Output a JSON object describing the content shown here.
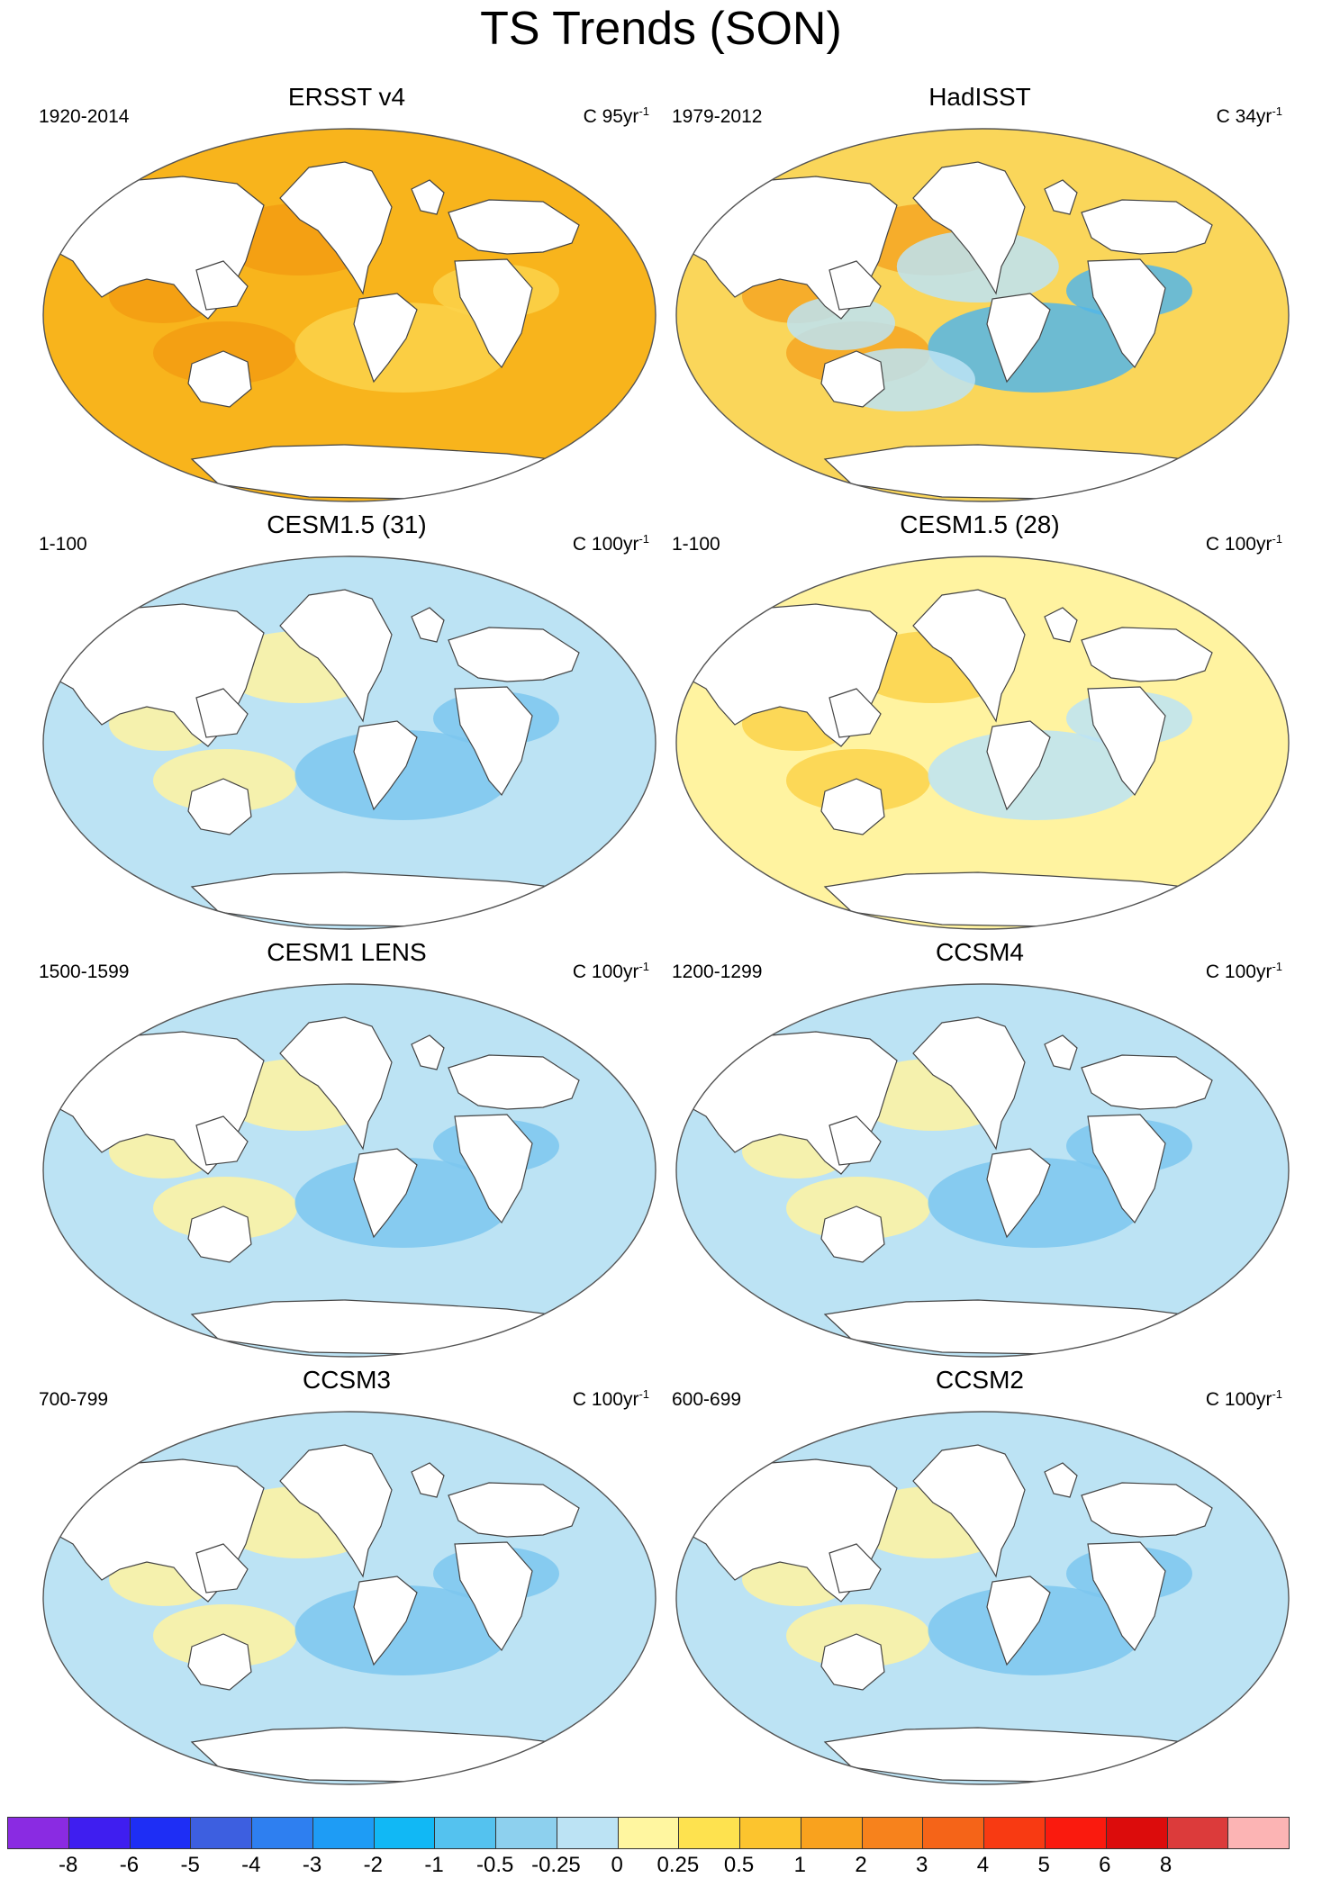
{
  "title": "TS Trends (SON)",
  "panels": [
    {
      "title": "ERSST v4",
      "period": "1920-2014",
      "units": "C 95yr",
      "sup": "-1",
      "ocean": "#F8B41C",
      "patches": [
        {
          "c": "#F39C12"
        },
        {
          "c": "#FBD24A"
        }
      ]
    },
    {
      "title": "HadISST",
      "period": "1979-2012",
      "units": "C 34yr",
      "sup": "-1",
      "ocean": "#FAD65A",
      "patches": [
        {
          "c": "#F5A623"
        },
        {
          "c": "#54B6E8"
        },
        {
          "c": "#BCE3F4"
        }
      ]
    },
    {
      "title": "CESM1.5 (31)",
      "period": "1-100",
      "units": "C 100yr",
      "sup": "-1",
      "ocean": "#BCE3F4",
      "patches": [
        {
          "c": "#FFF3A0"
        },
        {
          "c": "#7CC7EE"
        }
      ]
    },
    {
      "title": "CESM1.5 (28)",
      "period": "1-100",
      "units": "C 100yr",
      "sup": "-1",
      "ocean": "#FFF3A0",
      "patches": [
        {
          "c": "#FBD24A"
        },
        {
          "c": "#BCE3F4"
        }
      ]
    },
    {
      "title": "CESM1 LENS",
      "period": "1500-1599",
      "units": "C 100yr",
      "sup": "-1",
      "ocean": "#BCE3F4",
      "patches": [
        {
          "c": "#FFF3A0"
        },
        {
          "c": "#7CC7EE"
        }
      ]
    },
    {
      "title": "CCSM4",
      "period": "1200-1299",
      "units": "C 100yr",
      "sup": "-1",
      "ocean": "#BCE3F4",
      "patches": [
        {
          "c": "#FFF3A0"
        },
        {
          "c": "#7CC7EE"
        }
      ]
    },
    {
      "title": "CCSM3",
      "period": "700-799",
      "units": "C 100yr",
      "sup": "-1",
      "ocean": "#BCE3F4",
      "patches": [
        {
          "c": "#FFF3A0"
        },
        {
          "c": "#7CC7EE"
        }
      ]
    },
    {
      "title": "CCSM2",
      "period": "600-699",
      "units": "C 100yr",
      "sup": "-1",
      "ocean": "#BCE3F4",
      "patches": [
        {
          "c": "#FFF3A0"
        },
        {
          "c": "#7CC7EE"
        }
      ]
    }
  ],
  "colorbar": {
    "colors": [
      "#8A2BE2",
      "#3F1EF0",
      "#1E2EF5",
      "#3D5FE0",
      "#2E7FF0",
      "#1E9CF5",
      "#11B8F5",
      "#54C2EF",
      "#8DD0EE",
      "#BCE3F4",
      "#FFF6A0",
      "#FEE24F",
      "#FCC42E",
      "#F9A21E",
      "#F7821C",
      "#F56418",
      "#F83A12",
      "#FA1A0E",
      "#DC0C0C",
      "#DC3B3B",
      "#FCB4B4"
    ],
    "labels": [
      "-8",
      "-6",
      "-5",
      "-4",
      "-3",
      "-2",
      "-1",
      "-0.5",
      "-0.25",
      "0",
      "0.25",
      "0.5",
      "1",
      "2",
      "3",
      "4",
      "5",
      "6",
      "8"
    ]
  }
}
